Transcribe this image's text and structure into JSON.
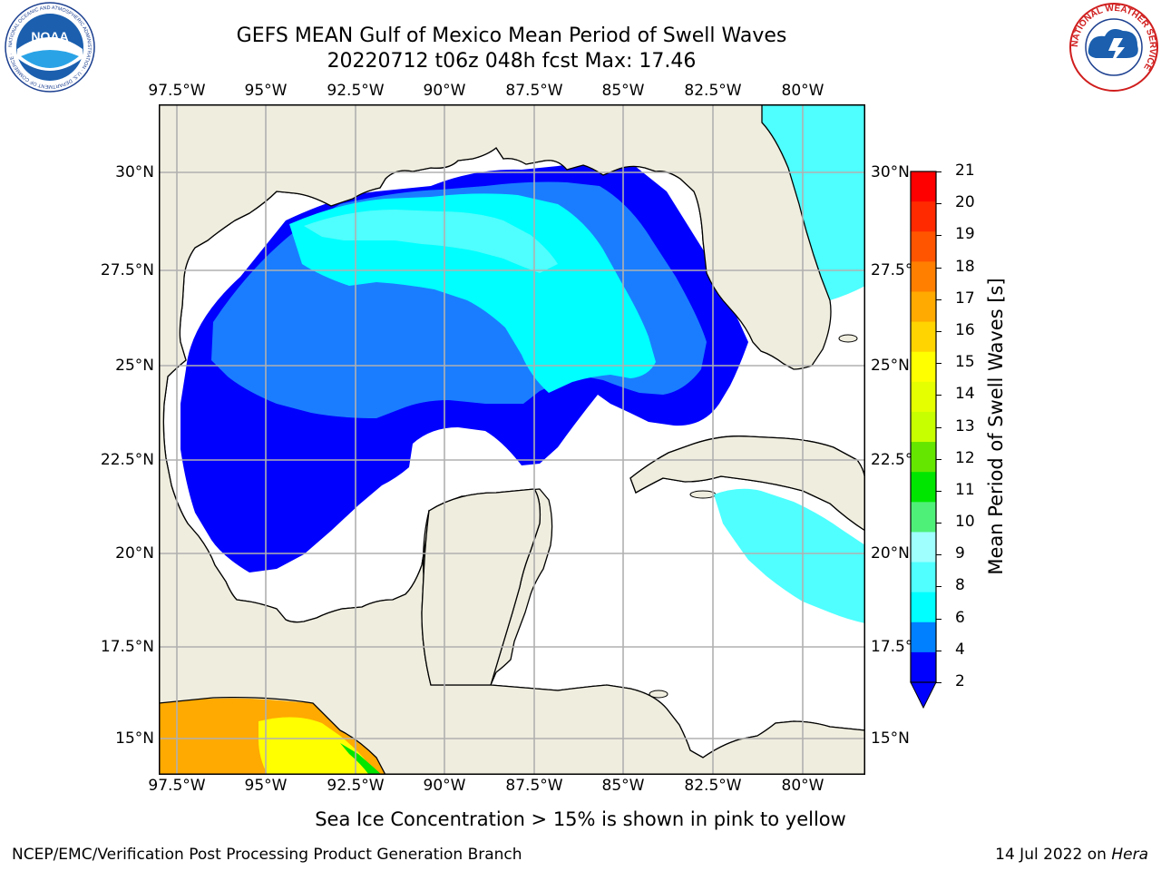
{
  "header": {
    "title_line1": "GEFS MEAN Gulf of Mexico Mean Period of Swell Waves",
    "title_line2": "20220712 t06z 048h fcst   Max: 17.46"
  },
  "map": {
    "lon_labels": [
      "97.5°W",
      "95°W",
      "92.5°W",
      "90°W",
      "87.5°W",
      "85°W",
      "82.5°W",
      "80°W"
    ],
    "lat_labels": [
      "30°N",
      "27.5°N",
      "25°N",
      "22.5°N",
      "20°N",
      "17.5°N",
      "15°N"
    ],
    "region": {
      "lon_min": -98.0,
      "lon_max": -78.3,
      "lat_min": 14.0,
      "lat_max": 31.8
    },
    "land_color": "#efedde",
    "ocean_nodata_color": "#ffffff",
    "grid_color": "#b0b0b0"
  },
  "colorbar": {
    "label": "Mean Period of Swell Waves [s]",
    "ticks": [
      "21",
      "20",
      "19",
      "18",
      "17",
      "16",
      "15",
      "14",
      "13",
      "12",
      "11",
      "10",
      "9",
      "8",
      "6",
      "4",
      "2"
    ],
    "colors": [
      "#ff0000",
      "#ff2a00",
      "#ff5500",
      "#ff7f00",
      "#ffaa00",
      "#ffd400",
      "#ffff00",
      "#e5ff00",
      "#c8ff00",
      "#64e600",
      "#00e600",
      "#4ff078",
      "#9fffff",
      "#50ffff",
      "#00ffff",
      "#0080ff",
      "#0000ff"
    ],
    "extend": "min"
  },
  "note": "Sea Ice Concentration > 15% is shown in pink to yellow",
  "footer": {
    "left": "NCEP/EMC/Verification Post Processing Product Generation Branch",
    "date": "14 Jul 2022 on ",
    "host": "Hera"
  },
  "logos": {
    "noaa_text": "NOAA",
    "noaa_ring": "NATIONAL OCEANIC AND ATMOSPHERIC ADMINISTRATION · U.S. DEPARTMENT OF COMMERCE ·",
    "nws_ring": "NATIONAL WEATHER SERVICE"
  }
}
